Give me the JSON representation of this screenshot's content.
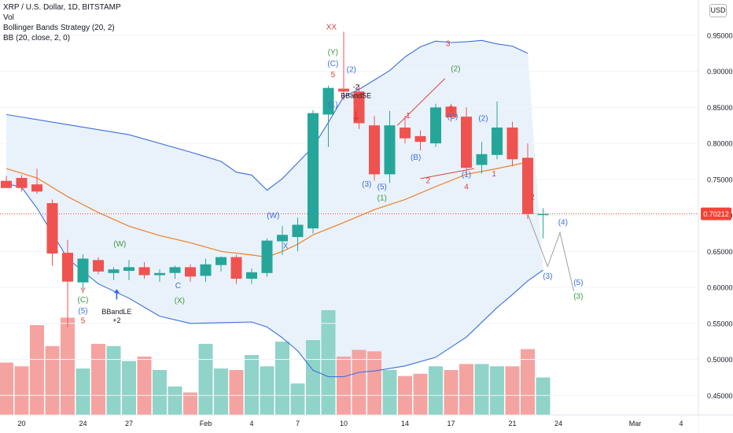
{
  "header": {
    "symbol": "XRP / U.S. Dollar, 1D, BITSTAMP",
    "vol_label": "Vol",
    "strategy_label": "Bollinger Bands Strategy (20, 2)",
    "bb_label": "BB (20, close, 2, 0)",
    "currency": "USD"
  },
  "colors": {
    "up": "#26a69a",
    "down": "#ef5350",
    "up_vol": "#8fd3c9",
    "down_vol": "#f5a3a1",
    "band": "#3a6fd9",
    "basis": "#f07e26",
    "fill": "#e9f2fb",
    "wave_blue": "#3a6fd9",
    "wave_green": "#3c9a3c",
    "wave_red": "#e04040",
    "projection": "#9e9e9e",
    "price_tag": "#f44336"
  },
  "chart_data": {
    "type": "candlestick",
    "title": "XRP / U.S. Dollar, 1D, BITSTAMP",
    "ylim": [
      0.435,
      0.975
    ],
    "y_ticks": [
      0.45,
      0.5,
      0.55,
      0.6,
      0.65,
      0.7,
      0.75,
      0.8,
      0.85,
      0.9,
      0.95
    ],
    "y_tick_labels": [
      "0.45000",
      "0.50000",
      "0.55000",
      "0.60000",
      "0.65000",
      "0.70000",
      "0.75000",
      "0.80000",
      "0.85000",
      "0.90000",
      "0.95000"
    ],
    "last_price": 0.70212,
    "last_price_label": "0.70212",
    "x_ticks": [
      {
        "i": 1,
        "label": "20"
      },
      {
        "i": 5,
        "label": "24"
      },
      {
        "i": 8,
        "label": "27"
      },
      {
        "i": 13,
        "label": "Feb"
      },
      {
        "i": 16,
        "label": "4"
      },
      {
        "i": 19,
        "label": "7"
      },
      {
        "i": 22,
        "label": "10"
      },
      {
        "i": 26,
        "label": "14"
      },
      {
        "i": 29,
        "label": "17"
      },
      {
        "i": 33,
        "label": "21"
      },
      {
        "i": 36,
        "label": "24"
      },
      {
        "i": 41,
        "label": "Mar"
      },
      {
        "i": 44,
        "label": "4"
      }
    ],
    "candles": [
      {
        "o": 0.748,
        "h": 0.755,
        "l": 0.74,
        "c": 0.738
      },
      {
        "o": 0.752,
        "h": 0.756,
        "l": 0.733,
        "c": 0.738
      },
      {
        "o": 0.743,
        "h": 0.765,
        "l": 0.73,
        "c": 0.733
      },
      {
        "o": 0.717,
        "h": 0.722,
        "l": 0.63,
        "c": 0.647
      },
      {
        "o": 0.648,
        "h": 0.666,
        "l": 0.545,
        "c": 0.608
      },
      {
        "o": 0.607,
        "h": 0.646,
        "l": 0.598,
        "c": 0.64
      },
      {
        "o": 0.638,
        "h": 0.642,
        "l": 0.618,
        "c": 0.622
      },
      {
        "o": 0.62,
        "h": 0.628,
        "l": 0.61,
        "c": 0.625
      },
      {
        "o": 0.623,
        "h": 0.638,
        "l": 0.61,
        "c": 0.628
      },
      {
        "o": 0.628,
        "h": 0.635,
        "l": 0.612,
        "c": 0.617
      },
      {
        "o": 0.617,
        "h": 0.625,
        "l": 0.608,
        "c": 0.62
      },
      {
        "o": 0.62,
        "h": 0.63,
        "l": 0.612,
        "c": 0.628
      },
      {
        "o": 0.628,
        "h": 0.632,
        "l": 0.608,
        "c": 0.615
      },
      {
        "o": 0.616,
        "h": 0.64,
        "l": 0.608,
        "c": 0.632
      },
      {
        "o": 0.631,
        "h": 0.643,
        "l": 0.622,
        "c": 0.642
      },
      {
        "o": 0.642,
        "h": 0.645,
        "l": 0.605,
        "c": 0.612
      },
      {
        "o": 0.612,
        "h": 0.626,
        "l": 0.605,
        "c": 0.621
      },
      {
        "o": 0.62,
        "h": 0.668,
        "l": 0.615,
        "c": 0.665
      },
      {
        "o": 0.664,
        "h": 0.685,
        "l": 0.645,
        "c": 0.673
      },
      {
        "o": 0.67,
        "h": 0.697,
        "l": 0.65,
        "c": 0.687
      },
      {
        "o": 0.682,
        "h": 0.846,
        "l": 0.675,
        "c": 0.842
      },
      {
        "o": 0.84,
        "h": 0.88,
        "l": 0.795,
        "c": 0.877
      },
      {
        "o": 0.876,
        "h": 0.955,
        "l": 0.86,
        "c": 0.872
      },
      {
        "o": 0.872,
        "h": 0.882,
        "l": 0.82,
        "c": 0.828
      },
      {
        "o": 0.825,
        "h": 0.838,
        "l": 0.748,
        "c": 0.757
      },
      {
        "o": 0.757,
        "h": 0.845,
        "l": 0.745,
        "c": 0.825
      },
      {
        "o": 0.822,
        "h": 0.838,
        "l": 0.8,
        "c": 0.807
      },
      {
        "o": 0.81,
        "h": 0.818,
        "l": 0.79,
        "c": 0.802
      },
      {
        "o": 0.8,
        "h": 0.855,
        "l": 0.795,
        "c": 0.85
      },
      {
        "o": 0.851,
        "h": 0.855,
        "l": 0.83,
        "c": 0.836
      },
      {
        "o": 0.837,
        "h": 0.85,
        "l": 0.758,
        "c": 0.766
      },
      {
        "o": 0.77,
        "h": 0.802,
        "l": 0.758,
        "c": 0.785
      },
      {
        "o": 0.784,
        "h": 0.858,
        "l": 0.778,
        "c": 0.822
      },
      {
        "o": 0.822,
        "h": 0.83,
        "l": 0.768,
        "c": 0.778
      },
      {
        "o": 0.78,
        "h": 0.8,
        "l": 0.695,
        "c": 0.702
      },
      {
        "o": 0.702,
        "h": 0.71,
        "l": 0.668,
        "c": 0.702
      }
    ],
    "volume": [
      0.7,
      0.65,
      1.2,
      0.92,
      1.3,
      0.62,
      0.95,
      0.92,
      0.72,
      0.78,
      0.6,
      0.38,
      0.3,
      0.95,
      0.62,
      0.6,
      0.8,
      0.65,
      0.98,
      0.42,
      1.0,
      1.4,
      0.78,
      0.87,
      0.85,
      0.6,
      0.52,
      0.55,
      0.65,
      0.6,
      0.68,
      0.68,
      0.65,
      0.65,
      0.88,
      0.5
    ],
    "volume_max": 1.4,
    "bb_upper": [
      [
        0,
        0.84
      ],
      [
        4,
        0.826
      ],
      [
        8,
        0.812
      ],
      [
        12,
        0.788
      ],
      [
        14,
        0.775
      ],
      [
        15,
        0.76
      ],
      [
        16,
        0.756
      ],
      [
        17,
        0.735
      ],
      [
        18,
        0.751
      ],
      [
        19,
        0.773
      ],
      [
        20,
        0.795
      ],
      [
        21,
        0.829
      ],
      [
        22,
        0.865
      ],
      [
        23,
        0.875
      ],
      [
        24,
        0.888
      ],
      [
        25,
        0.901
      ],
      [
        26,
        0.92
      ],
      [
        27,
        0.934
      ],
      [
        28,
        0.942
      ],
      [
        29,
        0.94
      ],
      [
        30,
        0.941
      ],
      [
        31,
        0.943
      ],
      [
        32,
        0.938
      ],
      [
        33,
        0.935
      ],
      [
        34,
        0.925
      ]
    ],
    "bb_basis": [
      [
        0,
        0.765
      ],
      [
        2,
        0.752
      ],
      [
        4,
        0.726
      ],
      [
        6,
        0.704
      ],
      [
        8,
        0.685
      ],
      [
        10,
        0.672
      ],
      [
        12,
        0.662
      ],
      [
        14,
        0.65
      ],
      [
        16,
        0.645
      ],
      [
        17,
        0.642
      ],
      [
        18,
        0.65
      ],
      [
        19,
        0.66
      ],
      [
        20,
        0.673
      ],
      [
        22,
        0.69
      ],
      [
        24,
        0.708
      ],
      [
        26,
        0.722
      ],
      [
        28,
        0.74
      ],
      [
        30,
        0.757
      ],
      [
        32,
        0.765
      ],
      [
        34,
        0.774
      ]
    ],
    "bb_lower": [
      [
        0,
        0.744
      ],
      [
        1,
        0.739
      ],
      [
        2,
        0.71
      ],
      [
        3,
        0.675
      ],
      [
        4,
        0.64
      ],
      [
        6,
        0.605
      ],
      [
        8,
        0.585
      ],
      [
        10,
        0.56
      ],
      [
        12,
        0.55
      ],
      [
        14,
        0.551
      ],
      [
        16,
        0.552
      ],
      [
        17,
        0.545
      ],
      [
        18,
        0.53
      ],
      [
        19,
        0.512
      ],
      [
        20,
        0.485
      ],
      [
        21,
        0.476
      ],
      [
        22,
        0.476
      ],
      [
        23,
        0.482
      ],
      [
        24,
        0.484
      ],
      [
        26,
        0.491
      ],
      [
        28,
        0.503
      ],
      [
        30,
        0.531
      ],
      [
        32,
        0.572
      ],
      [
        33,
        0.59
      ],
      [
        34,
        0.609
      ],
      [
        35,
        0.624
      ]
    ],
    "projection": [
      [
        34,
        0.702
      ],
      [
        35.3,
        0.629
      ],
      [
        36.1,
        0.676
      ],
      [
        37,
        0.595
      ]
    ],
    "signal_lines": [
      {
        "color": "red",
        "from": [
          25.5,
          0.825
        ],
        "to": [
          28.6,
          0.89
        ]
      },
      {
        "color": "red",
        "from": [
          27,
          0.751
        ],
        "to": [
          30.5,
          0.765
        ]
      }
    ],
    "annotations": [
      {
        "i": 5,
        "y": 0.582,
        "text": "(C)",
        "color": "green"
      },
      {
        "i": 5,
        "y": 0.567,
        "text": "(5)",
        "color": "blue"
      },
      {
        "i": 5,
        "y": 0.553,
        "text": "5",
        "color": "red"
      },
      {
        "i": 5,
        "y": 0.595,
        "text": "Y",
        "color": "red"
      },
      {
        "i": 7.4,
        "y": 0.66,
        "text": "(W)",
        "color": "green"
      },
      {
        "i": 11.2,
        "y": 0.602,
        "text": "C",
        "color": "blue"
      },
      {
        "i": 11.3,
        "y": 0.581,
        "text": "(X)",
        "color": "green"
      },
      {
        "i": 17.4,
        "y": 0.699,
        "text": "(W)",
        "color": "blue"
      },
      {
        "i": 18.2,
        "y": 0.657,
        "text": "X",
        "color": "blue"
      },
      {
        "i": 21.2,
        "y": 0.961,
        "text": "XX",
        "color": "red"
      },
      {
        "i": 21.3,
        "y": 0.926,
        "text": "(Y)",
        "color": "green"
      },
      {
        "i": 21.3,
        "y": 0.91,
        "text": "(C)",
        "color": "blue"
      },
      {
        "i": 21.3,
        "y": 0.895,
        "text": "5",
        "color": "red"
      },
      {
        "i": 21.3,
        "y": 0.853,
        "text": "(1)",
        "color": "blue"
      },
      {
        "i": 22.5,
        "y": 0.902,
        "text": "(2)",
        "color": "blue"
      },
      {
        "i": 23.5,
        "y": 0.743,
        "text": "(3)",
        "color": "blue"
      },
      {
        "i": 24.5,
        "y": 0.739,
        "text": "(5)",
        "color": "blue"
      },
      {
        "i": 24.5,
        "y": 0.724,
        "text": "(1)",
        "color": "green"
      },
      {
        "i": 26.7,
        "y": 0.78,
        "text": "(B)",
        "color": "blue"
      },
      {
        "i": 26.2,
        "y": 0.838,
        "text": "1",
        "color": "red"
      },
      {
        "i": 28.8,
        "y": 0.938,
        "text": "3",
        "color": "red"
      },
      {
        "i": 29.3,
        "y": 0.903,
        "text": "(2)",
        "color": "green"
      },
      {
        "i": 29.1,
        "y": 0.837,
        "text": "(C)",
        "color": "blue"
      },
      {
        "i": 29.0,
        "y": 0.847,
        "text": "5",
        "color": "red"
      },
      {
        "i": 27.5,
        "y": 0.748,
        "text": "2",
        "color": "red"
      },
      {
        "i": 30.0,
        "y": 0.756,
        "text": "(1)",
        "color": "blue"
      },
      {
        "i": 30.0,
        "y": 0.739,
        "text": "4",
        "color": "red"
      },
      {
        "i": 31.1,
        "y": 0.834,
        "text": "(2)",
        "color": "blue"
      },
      {
        "i": 31.8,
        "y": 0.757,
        "text": "1",
        "color": "red"
      },
      {
        "i": 34.3,
        "y": 0.725,
        "text": "2",
        "color": "red"
      },
      {
        "i": 35.3,
        "y": 0.615,
        "text": "(3)",
        "color": "blue"
      },
      {
        "i": 36.3,
        "y": 0.69,
        "text": "(4)",
        "color": "blue"
      },
      {
        "i": 37.3,
        "y": 0.606,
        "text": "(5)",
        "color": "blue"
      },
      {
        "i": 37.3,
        "y": 0.587,
        "text": "(3)",
        "color": "green"
      }
    ],
    "strategy_signals": [
      {
        "i": 7.2,
        "label1": "BBandLE",
        "label2": "+2",
        "dir": "up",
        "y_arrow": 0.591,
        "y_text": 0.563
      },
      {
        "i": 22.8,
        "label1": "-2",
        "label2": "BBandSE",
        "dir": "down",
        "y_arrow": 0.837,
        "y_text": 0.875
      }
    ]
  }
}
